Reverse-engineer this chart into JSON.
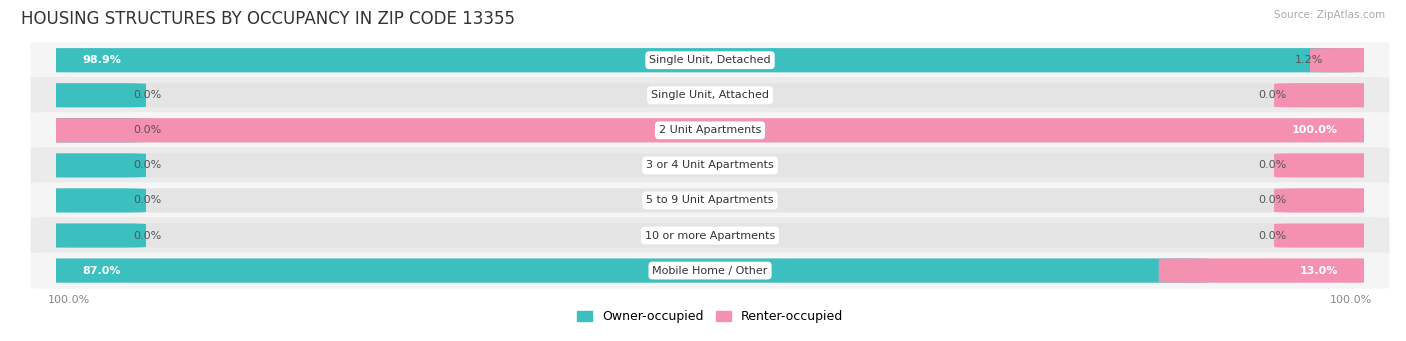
{
  "title": "HOUSING STRUCTURES BY OCCUPANCY IN ZIP CODE 13355",
  "source": "Source: ZipAtlas.com",
  "categories": [
    "Single Unit, Detached",
    "Single Unit, Attached",
    "2 Unit Apartments",
    "3 or 4 Unit Apartments",
    "5 to 9 Unit Apartments",
    "10 or more Apartments",
    "Mobile Home / Other"
  ],
  "owner_values": [
    98.9,
    0.0,
    0.0,
    0.0,
    0.0,
    0.0,
    87.0
  ],
  "renter_values": [
    1.2,
    0.0,
    100.0,
    0.0,
    0.0,
    0.0,
    13.0
  ],
  "owner_color": "#3bbfbf",
  "renter_color": "#f490b0",
  "bar_bg_color": "#e4e4e4",
  "row_bg_even": "#f5f5f5",
  "row_bg_odd": "#ebebeb",
  "title_fontsize": 12,
  "label_fontsize": 8,
  "tick_fontsize": 8,
  "legend_fontsize": 9,
  "figsize": [
    14.06,
    3.41
  ],
  "dpi": 100
}
